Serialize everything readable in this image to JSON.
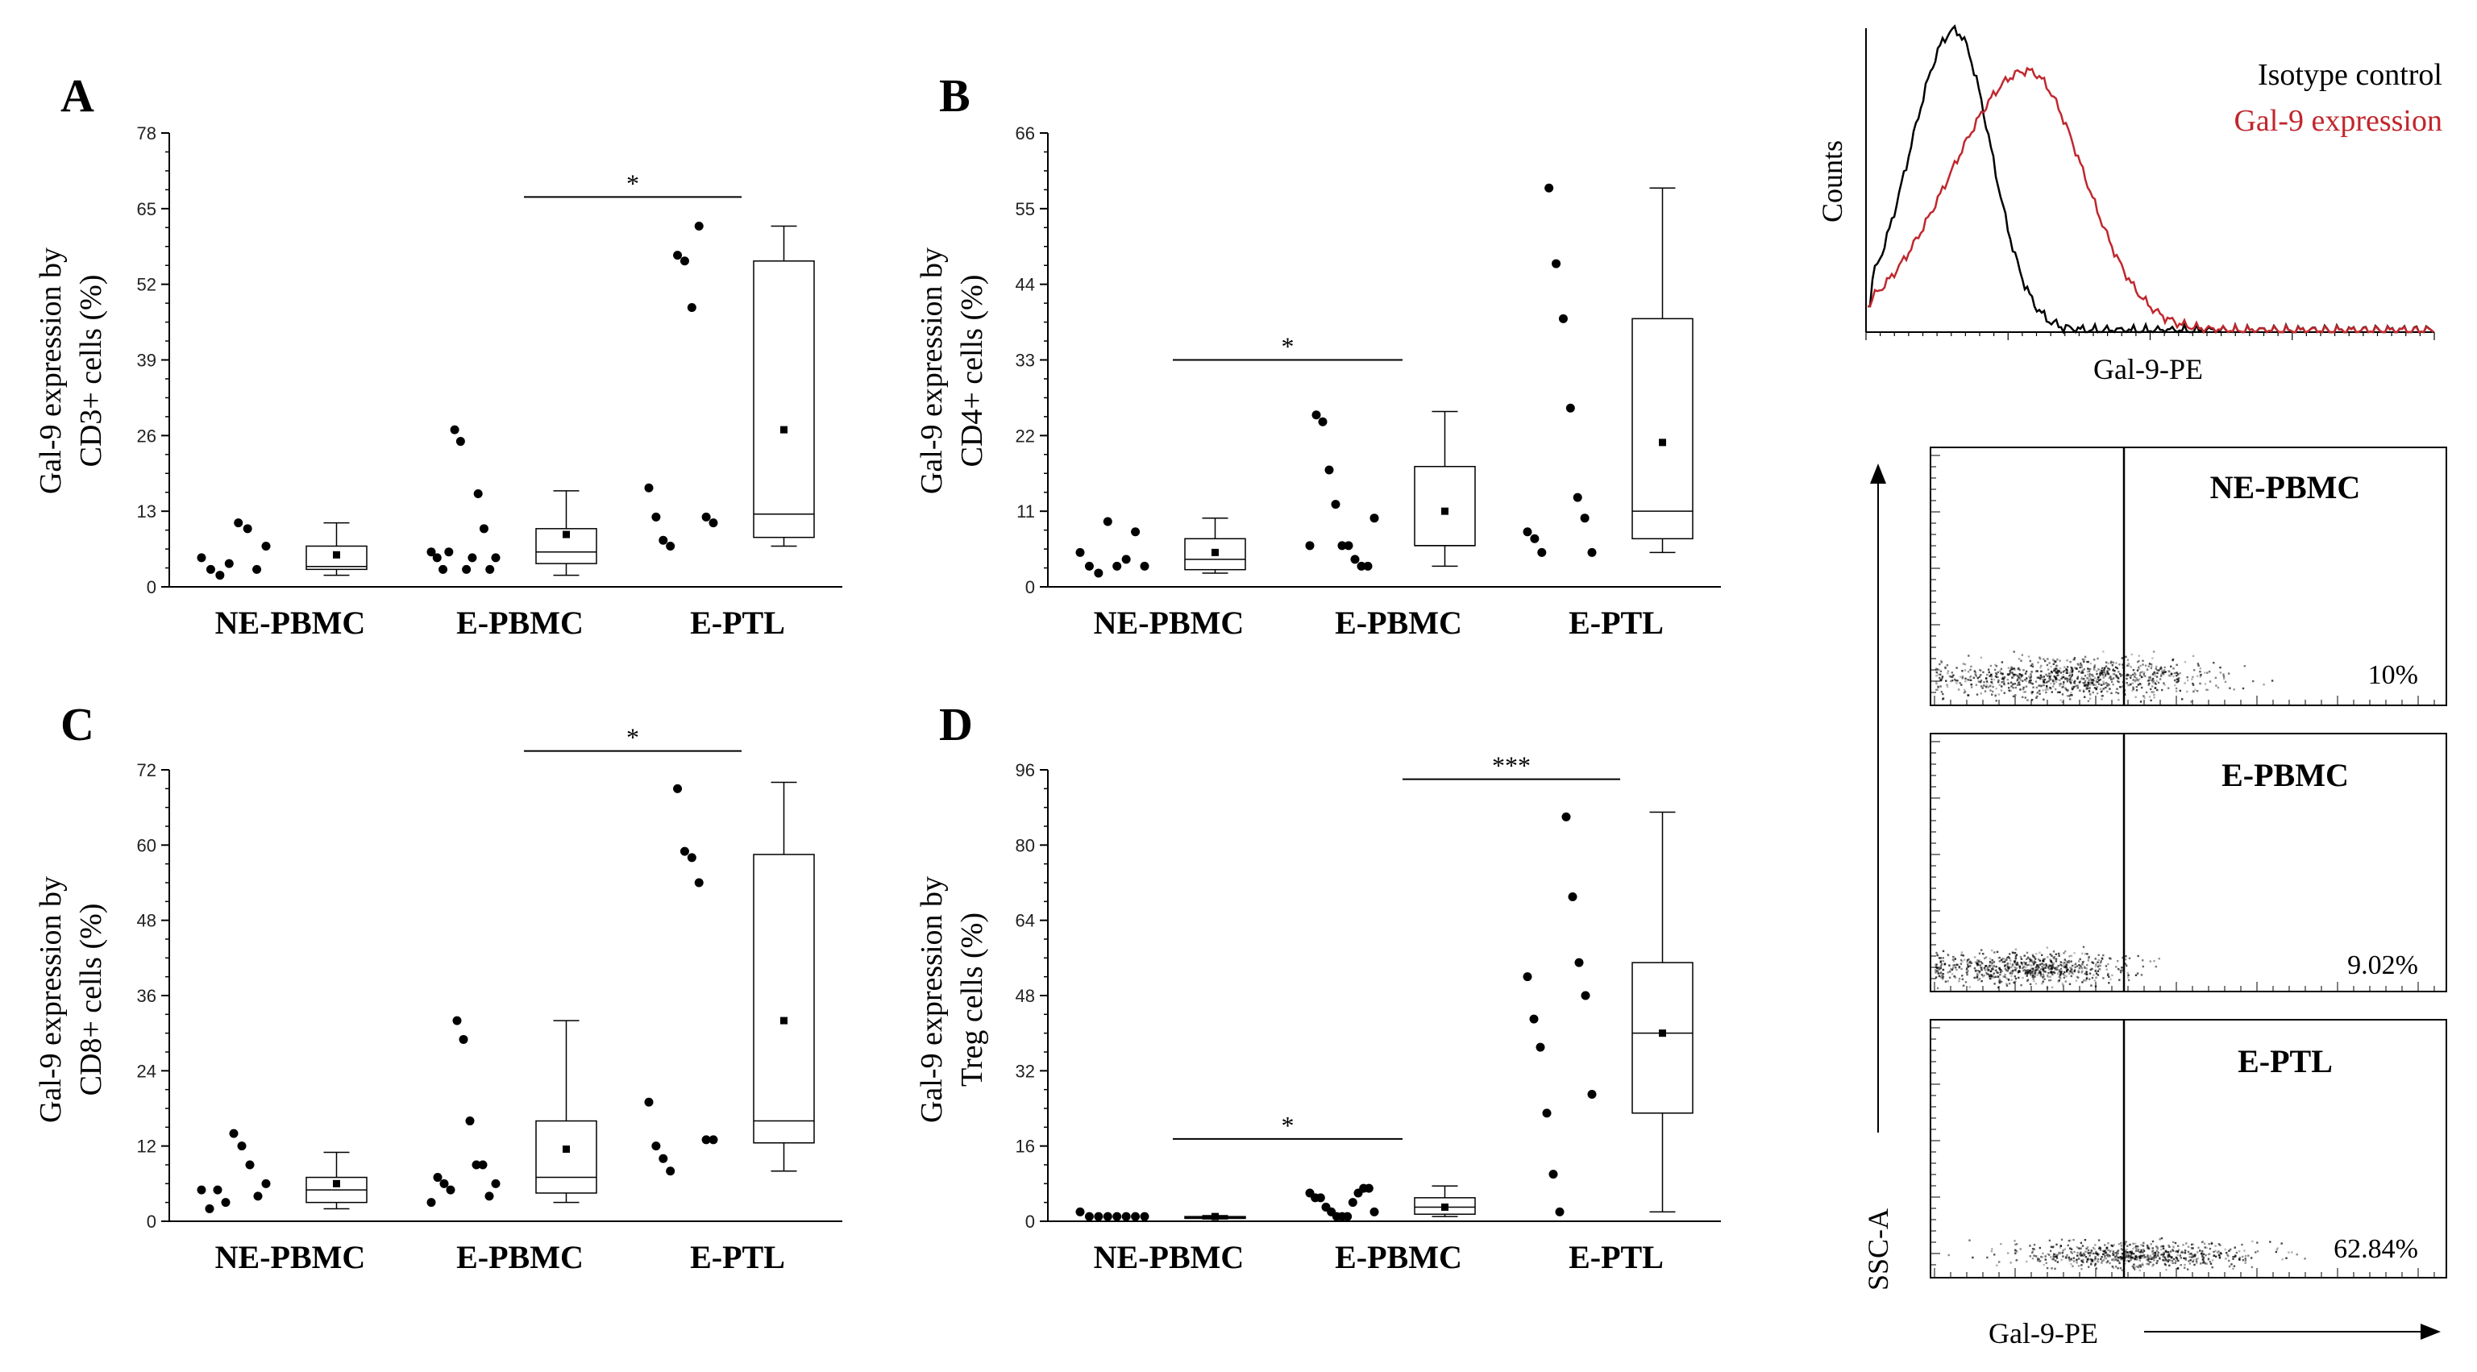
{
  "chart_data": [
    {
      "panel": "A",
      "type": "box-scatter",
      "ylabel_line1": "Gal-9 expression by",
      "ylabel_line2": "CD3+ cells (%)",
      "ylim": [
        0,
        78
      ],
      "yticks": [
        0,
        13,
        26,
        39,
        52,
        65,
        78
      ],
      "categories": [
        "NE-PBMC",
        "E-PBMC",
        "E-PTL"
      ],
      "groups": [
        {
          "name": "NE-PBMC",
          "points": [
            5,
            3,
            2,
            4,
            11,
            10,
            3,
            7
          ],
          "box": {
            "min": 2,
            "q1": 3,
            "median": 3.5,
            "q3": 7,
            "max": 11,
            "mean": 5.5
          }
        },
        {
          "name": "E-PBMC",
          "points": [
            6,
            5,
            3,
            6,
            27,
            25,
            3,
            5,
            16,
            10,
            3,
            5
          ],
          "box": {
            "min": 2,
            "q1": 4,
            "median": 6,
            "q3": 10,
            "max": 16.5,
            "mean": 9
          }
        },
        {
          "name": "E-PTL",
          "points": [
            17,
            12,
            8,
            7,
            57,
            56,
            48,
            62,
            12,
            11
          ],
          "box": {
            "min": 7,
            "q1": 8.5,
            "median": 12.5,
            "q3": 56,
            "max": 62,
            "mean": 27
          }
        }
      ],
      "significance": [
        {
          "from": "E-PBMC",
          "to": "E-PTL",
          "label": "*",
          "y": 67
        }
      ]
    },
    {
      "panel": "B",
      "type": "box-scatter",
      "ylabel_line1": "Gal-9 expression by",
      "ylabel_line2": "CD4+ cells (%)",
      "ylim": [
        0,
        66
      ],
      "yticks": [
        0,
        11,
        22,
        33,
        44,
        55,
        66
      ],
      "categories": [
        "NE-PBMC",
        "E-PBMC",
        "E-PTL"
      ],
      "groups": [
        {
          "name": "NE-PBMC",
          "points": [
            5,
            3,
            2,
            9.5,
            3,
            4,
            8,
            3
          ],
          "box": {
            "min": 2,
            "q1": 2.5,
            "median": 4,
            "q3": 7,
            "max": 10,
            "mean": 5
          }
        },
        {
          "name": "E-PBMC",
          "points": [
            6,
            25,
            24,
            17,
            12,
            6,
            6,
            4,
            3,
            3,
            10
          ],
          "box": {
            "min": 3,
            "q1": 6,
            "median": 6,
            "q3": 17.5,
            "max": 25.5,
            "mean": 11
          }
        },
        {
          "name": "E-PTL",
          "points": [
            8,
            7,
            5,
            58,
            47,
            39,
            26,
            13,
            10,
            5
          ],
          "box": {
            "min": 5,
            "q1": 7,
            "median": 11,
            "q3": 39,
            "max": 58,
            "mean": 21
          }
        }
      ],
      "significance": [
        {
          "from": "NE-PBMC",
          "to": "E-PBMC",
          "label": "*",
          "y": 33
        }
      ]
    },
    {
      "panel": "C",
      "type": "box-scatter",
      "ylabel_line1": "Gal-9 expression by",
      "ylabel_line2": "CD8+ cells (%)",
      "ylim": [
        0,
        72
      ],
      "yticks": [
        0,
        12,
        24,
        36,
        48,
        60,
        72
      ],
      "categories": [
        "NE-PBMC",
        "E-PBMC",
        "E-PTL"
      ],
      "groups": [
        {
          "name": "NE-PBMC",
          "points": [
            5,
            2,
            5,
            3,
            14,
            12,
            9,
            4,
            6
          ],
          "box": {
            "min": 2,
            "q1": 3,
            "median": 5,
            "q3": 7,
            "max": 11,
            "mean": 6
          }
        },
        {
          "name": "E-PBMC",
          "points": [
            3,
            7,
            6,
            5,
            32,
            29,
            16,
            9,
            9,
            4,
            6
          ],
          "box": {
            "min": 3,
            "q1": 4.5,
            "median": 7,
            "q3": 16,
            "max": 32,
            "mean": 11.5
          }
        },
        {
          "name": "E-PTL",
          "points": [
            19,
            12,
            10,
            8,
            69,
            59,
            58,
            54,
            13,
            13
          ],
          "box": {
            "min": 8,
            "q1": 12.5,
            "median": 16,
            "q3": 58.5,
            "max": 70,
            "mean": 32
          }
        }
      ],
      "significance": [
        {
          "from": "E-PBMC",
          "to": "E-PTL",
          "label": "*",
          "y": 75
        }
      ]
    },
    {
      "panel": "D",
      "type": "box-scatter",
      "ylabel_line1": "Gal-9 expression by",
      "ylabel_line2": "Treg cells (%)",
      "ylim": [
        0,
        96
      ],
      "yticks": [
        0,
        16,
        32,
        48,
        64,
        80,
        96
      ],
      "categories": [
        "NE-PBMC",
        "E-PBMC",
        "E-PTL"
      ],
      "groups": [
        {
          "name": "NE-PBMC",
          "points": [
            2,
            1,
            1,
            1,
            1,
            1,
            1,
            1
          ],
          "box": {
            "min": 0.5,
            "q1": 0.6,
            "median": 0.8,
            "q3": 1,
            "max": 1.2,
            "mean": 1
          }
        },
        {
          "name": "E-PBMC",
          "points": [
            6,
            5,
            5,
            3,
            2,
            1,
            1,
            1,
            4,
            6,
            7,
            7,
            2
          ],
          "box": {
            "min": 1,
            "q1": 1.5,
            "median": 3,
            "q3": 5,
            "max": 7.5,
            "mean": 3
          }
        },
        {
          "name": "E-PTL",
          "points": [
            52,
            43,
            37,
            23,
            10,
            2,
            86,
            69,
            55,
            48,
            27
          ],
          "box": {
            "min": 2,
            "q1": 23,
            "median": 40,
            "q3": 55,
            "max": 87,
            "mean": 40
          }
        }
      ],
      "significance": [
        {
          "from": "NE-PBMC",
          "to": "E-PBMC",
          "label": "*",
          "y": 17.5
        },
        {
          "from": "E-PBMC",
          "to": "E-PTL",
          "label": "***",
          "y": 94
        }
      ]
    }
  ],
  "histogram": {
    "ylabel": "Counts",
    "xlabel": "Gal-9-PE",
    "legend": [
      {
        "label": "Isotype control",
        "color": "#000000"
      },
      {
        "label": "Gal-9 expression",
        "color": "#c0272d"
      }
    ]
  },
  "flow": {
    "yaxis": "SSC-A",
    "xaxis": "Gal-9-PE",
    "panels": [
      {
        "label": "NE-PBMC",
        "percent": "10%"
      },
      {
        "label": "E-PBMC",
        "percent": "9.02%"
      },
      {
        "label": "E-PTL",
        "percent": "62.84%"
      }
    ]
  }
}
